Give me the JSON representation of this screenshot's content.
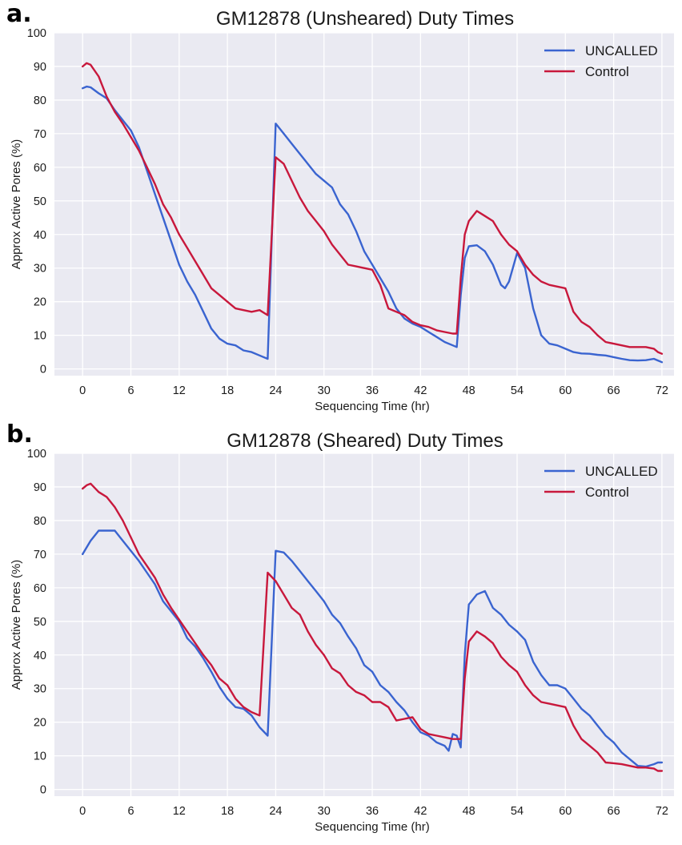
{
  "chart_data": [
    {
      "panel": "a.",
      "type": "line",
      "title": "GM12878 (Unsheared) Duty Times",
      "xlabel": "Sequencing Time (hr)",
      "ylabel": "Approx Active Pores (%)",
      "xlim": [
        -3.5,
        73.5
      ],
      "ylim": [
        -2,
        100
      ],
      "xticks": [
        0,
        6,
        12,
        18,
        24,
        30,
        36,
        42,
        48,
        54,
        60,
        66,
        72
      ],
      "yticks": [
        0,
        10,
        20,
        30,
        40,
        50,
        60,
        70,
        80,
        90,
        100
      ],
      "grid": true,
      "legend_position": "top-right",
      "series": [
        {
          "name": "UNCALLED",
          "color": "#3A64D0",
          "x": [
            0,
            0.5,
            1,
            2,
            3,
            4,
            5,
            6,
            7,
            8,
            9,
            10,
            11,
            12,
            13,
            14,
            15,
            16,
            17,
            18,
            19,
            20,
            21,
            22,
            23,
            24,
            25,
            26,
            27,
            28,
            29,
            30,
            31,
            32,
            33,
            34,
            35,
            36,
            37,
            38,
            39,
            40,
            41,
            42,
            43,
            44,
            45,
            46,
            46.5,
            47,
            47.5,
            48,
            49,
            50,
            51,
            52,
            52.5,
            53,
            54,
            55,
            56,
            57,
            58,
            59,
            60,
            61,
            62,
            63,
            64,
            65,
            66,
            67,
            68,
            69,
            70,
            71,
            71.5,
            72
          ],
          "y": [
            83.5,
            84,
            83.8,
            82,
            80.5,
            77,
            74,
            71,
            66,
            59,
            52,
            45,
            38,
            31,
            26,
            22,
            17,
            12,
            9,
            7.5,
            7,
            5.5,
            5,
            4,
            3,
            73,
            70,
            67,
            64,
            61,
            58,
            56,
            54,
            49,
            46,
            41,
            35,
            31,
            27,
            23,
            18,
            15,
            13.5,
            12.5,
            11,
            9.5,
            8,
            7,
            6.5,
            22,
            33,
            36.5,
            36.8,
            35,
            31,
            25,
            24,
            26,
            34.5,
            30,
            18,
            10,
            7.5,
            7,
            6,
            5,
            4.6,
            4.5,
            4.2,
            4,
            3.5,
            3,
            2.6,
            2.5,
            2.6,
            3,
            2.5,
            2
          ]
        },
        {
          "name": "Control",
          "color": "#C8183C",
          "x": [
            0,
            0.5,
            1,
            2,
            3,
            4,
            5,
            6,
            7,
            8,
            9,
            10,
            11,
            12,
            13,
            14,
            15,
            16,
            17,
            18,
            19,
            20,
            21,
            22,
            23,
            24,
            25,
            26,
            27,
            28,
            29,
            30,
            31,
            32,
            33,
            34,
            35,
            36,
            37,
            38,
            39,
            40,
            41,
            42,
            43,
            44,
            45,
            46,
            46.5,
            47,
            47.5,
            48,
            49,
            50,
            51,
            52,
            53,
            54,
            55,
            56,
            57,
            58,
            59,
            60,
            61,
            62,
            63,
            64,
            65,
            66,
            67,
            68,
            69,
            70,
            71,
            71.5,
            72
          ],
          "y": [
            90,
            91,
            90.5,
            87,
            81,
            76.5,
            73,
            69,
            65,
            60,
            55,
            49,
            45,
            40,
            36,
            32,
            28,
            24,
            22,
            20,
            18,
            17.5,
            17,
            17.5,
            16,
            63,
            61,
            56,
            51,
            47,
            44,
            41,
            37,
            34,
            31,
            30.5,
            30,
            29.5,
            25,
            18,
            17,
            16,
            14,
            13,
            12.5,
            11.5,
            11,
            10.5,
            10.5,
            27,
            40,
            44,
            47,
            45.5,
            44,
            40,
            37,
            35,
            31,
            28,
            26,
            25,
            24.5,
            24,
            17,
            14,
            12.5,
            10,
            8,
            7.5,
            7,
            6.5,
            6.5,
            6.5,
            6,
            5,
            4.5
          ]
        }
      ]
    },
    {
      "panel": "b.",
      "type": "line",
      "title": "GM12878 (Sheared) Duty Times",
      "xlabel": "Sequencing Time (hr)",
      "ylabel": "Approx Active Pores (%)",
      "xlim": [
        -3.5,
        73.5
      ],
      "ylim": [
        -2,
        100
      ],
      "xticks": [
        0,
        6,
        12,
        18,
        24,
        30,
        36,
        42,
        48,
        54,
        60,
        66,
        72
      ],
      "yticks": [
        0,
        10,
        20,
        30,
        40,
        50,
        60,
        70,
        80,
        90,
        100
      ],
      "grid": true,
      "legend_position": "top-right",
      "series": [
        {
          "name": "UNCALLED",
          "color": "#3A64D0",
          "x": [
            0,
            1,
            2,
            3,
            4,
            5,
            6,
            7,
            8,
            9,
            10,
            11,
            12,
            13,
            14,
            15,
            16,
            17,
            18,
            19,
            20,
            21,
            22,
            23,
            24,
            25,
            26,
            27,
            28,
            29,
            30,
            31,
            32,
            33,
            34,
            35,
            36,
            37,
            38,
            39,
            40,
            41,
            42,
            43,
            44,
            45,
            45.5,
            46,
            46.5,
            47,
            47.5,
            48,
            49,
            50,
            51,
            52,
            53,
            54,
            55,
            56,
            57,
            58,
            59,
            60,
            61,
            62,
            63,
            64,
            65,
            66,
            67,
            68,
            69,
            70,
            71,
            71.5,
            72
          ],
          "y": [
            70,
            74,
            77,
            77,
            77,
            74,
            71,
            68,
            64.5,
            61,
            56,
            53,
            50,
            45,
            42.5,
            39,
            35,
            30.5,
            27,
            24.5,
            24,
            22,
            18.5,
            16,
            71,
            70.5,
            68,
            65,
            62,
            59,
            56,
            52,
            49.5,
            45.5,
            42,
            37,
            35,
            31,
            29,
            26,
            23.5,
            20,
            17,
            16,
            14,
            13,
            11.5,
            16.5,
            16,
            12.5,
            40,
            55,
            58,
            59,
            54,
            52,
            49,
            47,
            44.5,
            38,
            34,
            31,
            31,
            30,
            27,
            24,
            22,
            19,
            16,
            14,
            11,
            9,
            7,
            6.8,
            7.5,
            8,
            8
          ]
        },
        {
          "name": "Control",
          "color": "#C8183C",
          "x": [
            0,
            0.5,
            1,
            2,
            3,
            4,
            5,
            6,
            7,
            8,
            9,
            10,
            11,
            12,
            13,
            14,
            15,
            16,
            17,
            18,
            19,
            20,
            21,
            22,
            23,
            24,
            25,
            26,
            27,
            28,
            29,
            30,
            31,
            32,
            33,
            34,
            35,
            36,
            37,
            38,
            39,
            40,
            41,
            42,
            43,
            44,
            45,
            46,
            46.5,
            47,
            47.5,
            48,
            49,
            50,
            51,
            52,
            53,
            54,
            55,
            56,
            57,
            58,
            59,
            60,
            61,
            62,
            63,
            64,
            65,
            66,
            67,
            68,
            69,
            70,
            71,
            71.5,
            72
          ],
          "y": [
            89.5,
            90.5,
            91,
            88.5,
            87,
            84,
            80,
            75,
            70,
            66.5,
            63,
            58,
            54,
            50.5,
            47,
            43.5,
            40,
            37,
            33,
            31,
            27,
            24.5,
            23,
            22,
            64.5,
            62,
            58,
            54,
            52,
            47,
            43,
            40,
            36,
            34.5,
            31,
            29,
            28,
            26,
            26,
            24.5,
            20.5,
            21,
            21.5,
            18,
            16.5,
            16,
            15.5,
            15,
            15,
            15,
            33,
            44,
            47,
            45.5,
            43.5,
            39.5,
            37,
            35,
            31,
            28,
            26,
            25.5,
            25,
            24.5,
            19,
            15,
            13,
            11,
            8,
            7.8,
            7.5,
            7,
            6.5,
            6.5,
            6.2,
            5.5,
            5.5
          ]
        }
      ]
    }
  ]
}
